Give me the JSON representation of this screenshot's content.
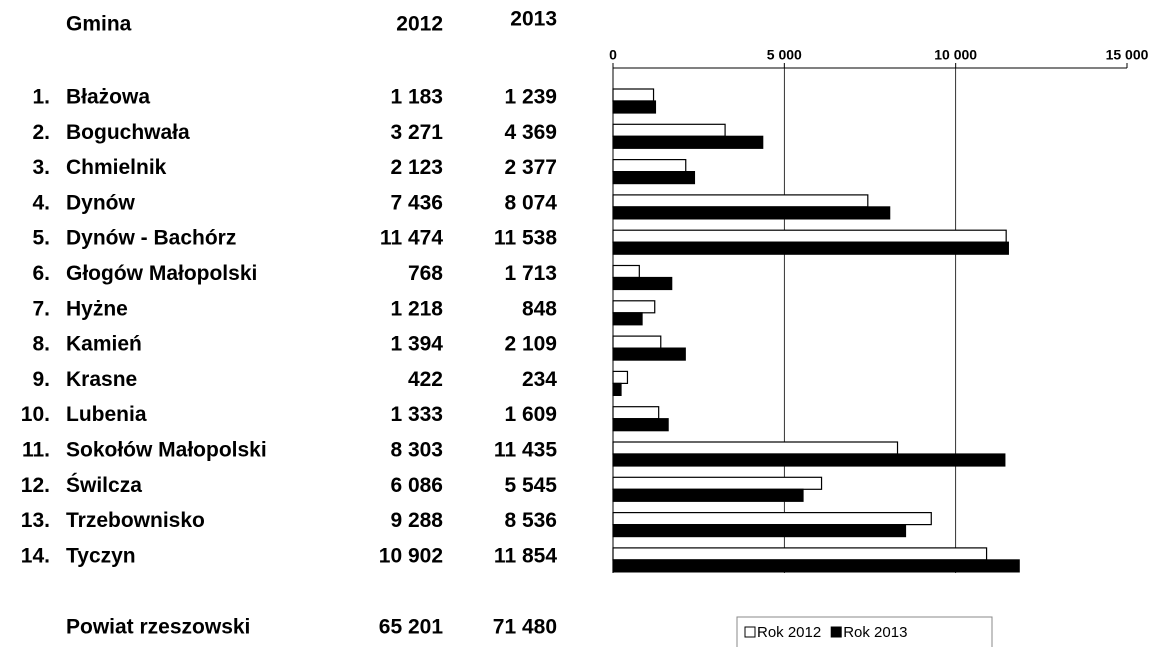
{
  "chart_data": {
    "type": "bar",
    "orientation": "horizontal",
    "column_headers": [
      "Gmina",
      "2012",
      "2013"
    ],
    "row_numbers": [
      "1.",
      "2.",
      "3.",
      "4.",
      "5.",
      "6.",
      "7.",
      "8.",
      "9.",
      "10.",
      "11.",
      "12.",
      "13.",
      "14."
    ],
    "categories": [
      "Błażowa",
      "Boguchwała",
      "Chmielnik",
      "Dynów",
      "Dynów - Bachórz",
      "Głogów Małopolski",
      "Hyżne",
      "Kamień",
      "Krasne",
      "Lubenia",
      "Sokołów Małopolski",
      "Świlcza",
      "Trzebownisko",
      "Tyczyn"
    ],
    "series": [
      {
        "name": "Rok 2012",
        "color": "#ffffff",
        "values": [
          1183,
          3271,
          2123,
          7436,
          11474,
          768,
          1218,
          1394,
          422,
          1333,
          8303,
          6086,
          9288,
          10902
        ],
        "value_labels": [
          "1 183",
          "3 271",
          "2 123",
          "7 436",
          "11 474",
          "768",
          "1 218",
          "1 394",
          "422",
          "1 333",
          "8 303",
          "6 086",
          "9 288",
          "10 902"
        ]
      },
      {
        "name": "Rok 2013",
        "color": "#000000",
        "values": [
          1239,
          4369,
          2377,
          8074,
          11538,
          1713,
          848,
          2109,
          234,
          1609,
          11435,
          5545,
          8536,
          11854
        ],
        "value_labels": [
          "1 239",
          "4 369",
          "2 377",
          "8 074",
          "11 538",
          "1 713",
          "848",
          "2 109",
          "234",
          "1 609",
          "11 435",
          "5 545",
          "8 536",
          "11 854"
        ]
      }
    ],
    "total": {
      "label": "Powiat rzeszowski",
      "values": [
        65201,
        71480
      ],
      "value_labels": [
        "65 201",
        "71 480"
      ]
    },
    "xlim": [
      0,
      15000
    ],
    "xticks": [
      0,
      {
        "value": 5000,
        "label": "5 000"
      },
      {
        "value": 10000,
        "label": "10 000"
      },
      {
        "value": 15000,
        "label": "15 000"
      }
    ],
    "grid": true,
    "legend": "bottom"
  }
}
